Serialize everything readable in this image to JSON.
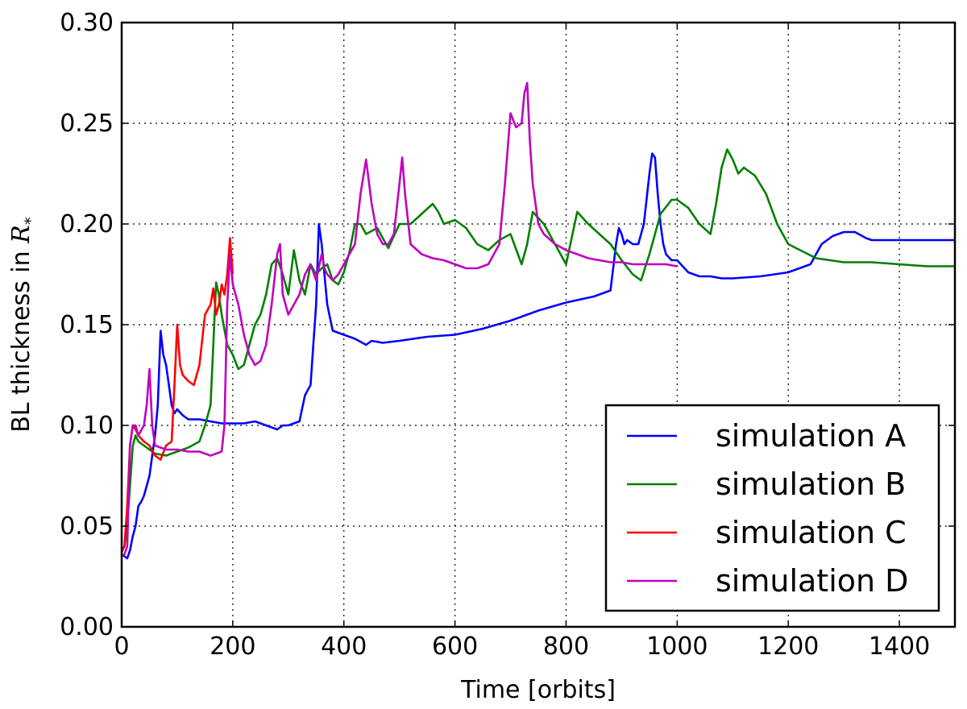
{
  "chart_data": {
    "type": "line",
    "xlabel": "Time [orbits]",
    "ylabel_prefix": "BL thickness in ",
    "ylabel_symbol": "R",
    "ylabel_subscript": "*",
    "xlim": [
      0,
      1500
    ],
    "ylim": [
      0,
      0.3
    ],
    "xticks": [
      0,
      200,
      400,
      600,
      800,
      1000,
      1200,
      1400
    ],
    "yticks": [
      0.0,
      0.05,
      0.1,
      0.15,
      0.2,
      0.25,
      0.3
    ],
    "xtick_labels": [
      "0",
      "200",
      "400",
      "600",
      "800",
      "1000",
      "1200",
      "1400"
    ],
    "ytick_labels": [
      "0.00",
      "0.05",
      "0.10",
      "0.15",
      "0.20",
      "0.25",
      "0.30"
    ],
    "grid": true,
    "legend_position": "bottom-right",
    "series": [
      {
        "name": "simulation A",
        "color": "#0000ff",
        "x": [
          0,
          5,
          10,
          15,
          20,
          25,
          30,
          35,
          40,
          50,
          55,
          60,
          65,
          70,
          75,
          80,
          85,
          90,
          95,
          100,
          110,
          120,
          140,
          160,
          180,
          200,
          220,
          240,
          260,
          280,
          290,
          300,
          320,
          330,
          340,
          345,
          350,
          355,
          360,
          365,
          370,
          380,
          390,
          400,
          420,
          440,
          450,
          470,
          500,
          550,
          600,
          650,
          700,
          750,
          800,
          850,
          880,
          890,
          895,
          900,
          905,
          910,
          920,
          930,
          940,
          950,
          955,
          960,
          965,
          970,
          975,
          980,
          990,
          1000,
          1020,
          1040,
          1060,
          1080,
          1100,
          1150,
          1200,
          1220,
          1240,
          1250,
          1260,
          1280,
          1300,
          1320,
          1340,
          1350,
          1400,
          1450,
          1500
        ],
        "y": [
          0.036,
          0.035,
          0.034,
          0.038,
          0.045,
          0.05,
          0.06,
          0.062,
          0.065,
          0.075,
          0.085,
          0.095,
          0.11,
          0.147,
          0.135,
          0.13,
          0.12,
          0.11,
          0.106,
          0.108,
          0.105,
          0.103,
          0.103,
          0.102,
          0.101,
          0.101,
          0.101,
          0.102,
          0.1,
          0.098,
          0.1,
          0.1,
          0.102,
          0.115,
          0.12,
          0.14,
          0.16,
          0.2,
          0.19,
          0.175,
          0.16,
          0.147,
          0.146,
          0.145,
          0.143,
          0.14,
          0.142,
          0.141,
          0.142,
          0.144,
          0.145,
          0.148,
          0.152,
          0.157,
          0.161,
          0.164,
          0.167,
          0.19,
          0.198,
          0.195,
          0.19,
          0.192,
          0.19,
          0.19,
          0.2,
          0.225,
          0.235,
          0.233,
          0.215,
          0.2,
          0.19,
          0.185,
          0.182,
          0.182,
          0.176,
          0.174,
          0.174,
          0.173,
          0.173,
          0.174,
          0.176,
          0.178,
          0.18,
          0.185,
          0.19,
          0.194,
          0.196,
          0.196,
          0.193,
          0.192,
          0.192,
          0.192,
          0.192
        ]
      },
      {
        "name": "simulation B",
        "color": "#008000",
        "x": [
          0,
          5,
          10,
          15,
          20,
          25,
          30,
          40,
          50,
          60,
          80,
          100,
          120,
          140,
          150,
          160,
          165,
          170,
          175,
          180,
          190,
          200,
          210,
          220,
          230,
          240,
          250,
          260,
          270,
          280,
          290,
          300,
          310,
          320,
          330,
          340,
          350,
          360,
          370,
          380,
          390,
          400,
          410,
          420,
          430,
          440,
          460,
          480,
          500,
          520,
          540,
          560,
          570,
          580,
          600,
          620,
          640,
          660,
          680,
          700,
          720,
          730,
          740,
          760,
          780,
          800,
          820,
          840,
          860,
          880,
          900,
          920,
          935,
          950,
          970,
          990,
          1000,
          1020,
          1040,
          1060,
          1070,
          1080,
          1090,
          1100,
          1110,
          1120,
          1130,
          1140,
          1160,
          1180,
          1200,
          1250,
          1300,
          1350,
          1400,
          1450,
          1500
        ],
        "y": [
          0.037,
          0.04,
          0.05,
          0.07,
          0.09,
          0.095,
          0.092,
          0.09,
          0.088,
          0.086,
          0.085,
          0.087,
          0.089,
          0.092,
          0.1,
          0.11,
          0.14,
          0.171,
          0.165,
          0.155,
          0.14,
          0.135,
          0.128,
          0.13,
          0.14,
          0.15,
          0.155,
          0.165,
          0.18,
          0.183,
          0.175,
          0.165,
          0.187,
          0.172,
          0.165,
          0.18,
          0.175,
          0.178,
          0.18,
          0.172,
          0.17,
          0.176,
          0.186,
          0.2,
          0.2,
          0.195,
          0.198,
          0.188,
          0.2,
          0.2,
          0.205,
          0.21,
          0.206,
          0.2,
          0.202,
          0.198,
          0.19,
          0.187,
          0.192,
          0.195,
          0.18,
          0.19,
          0.206,
          0.2,
          0.19,
          0.18,
          0.206,
          0.2,
          0.195,
          0.19,
          0.182,
          0.175,
          0.172,
          0.185,
          0.205,
          0.212,
          0.212,
          0.208,
          0.2,
          0.195,
          0.21,
          0.228,
          0.237,
          0.232,
          0.225,
          0.228,
          0.226,
          0.224,
          0.215,
          0.2,
          0.19,
          0.183,
          0.181,
          0.181,
          0.18,
          0.179,
          0.179
        ]
      },
      {
        "name": "simulation C",
        "color": "#ff0000",
        "x": [
          0,
          5,
          10,
          15,
          20,
          25,
          30,
          40,
          50,
          60,
          70,
          80,
          90,
          95,
          100,
          105,
          110,
          120,
          130,
          140,
          150,
          160,
          165,
          170,
          175,
          180,
          185,
          190,
          195,
          200
        ],
        "y": [
          0.038,
          0.04,
          0.06,
          0.09,
          0.1,
          0.098,
          0.095,
          0.092,
          0.09,
          0.085,
          0.083,
          0.09,
          0.092,
          0.12,
          0.15,
          0.13,
          0.125,
          0.122,
          0.12,
          0.13,
          0.155,
          0.16,
          0.168,
          0.155,
          0.16,
          0.17,
          0.165,
          0.175,
          0.193,
          0.175
        ]
      },
      {
        "name": "simulation D",
        "color": "#bf00bf",
        "x": [
          0,
          5,
          10,
          15,
          20,
          25,
          30,
          40,
          45,
          50,
          55,
          60,
          80,
          100,
          120,
          140,
          160,
          170,
          180,
          185,
          190,
          195,
          200,
          210,
          220,
          230,
          240,
          250,
          260,
          270,
          280,
          285,
          290,
          300,
          310,
          320,
          330,
          340,
          350,
          360,
          365,
          370,
          380,
          390,
          400,
          420,
          430,
          440,
          450,
          460,
          470,
          480,
          490,
          500,
          505,
          510,
          520,
          540,
          560,
          580,
          600,
          620,
          640,
          660,
          680,
          690,
          700,
          710,
          720,
          725,
          730,
          735,
          740,
          750,
          760,
          780,
          800,
          820,
          840,
          860,
          880,
          900,
          920,
          940,
          960,
          980,
          1000
        ],
        "y": [
          0.035,
          0.036,
          0.04,
          0.09,
          0.1,
          0.1,
          0.095,
          0.1,
          0.11,
          0.128,
          0.1,
          0.09,
          0.088,
          0.088,
          0.087,
          0.087,
          0.085,
          0.086,
          0.087,
          0.1,
          0.16,
          0.185,
          0.17,
          0.16,
          0.145,
          0.135,
          0.13,
          0.132,
          0.14,
          0.16,
          0.185,
          0.19,
          0.165,
          0.155,
          0.16,
          0.165,
          0.175,
          0.18,
          0.172,
          0.185,
          0.178,
          0.175,
          0.172,
          0.175,
          0.18,
          0.19,
          0.215,
          0.232,
          0.21,
          0.195,
          0.19,
          0.19,
          0.195,
          0.22,
          0.233,
          0.215,
          0.19,
          0.185,
          0.183,
          0.182,
          0.18,
          0.178,
          0.178,
          0.18,
          0.19,
          0.22,
          0.255,
          0.248,
          0.25,
          0.265,
          0.27,
          0.24,
          0.22,
          0.2,
          0.195,
          0.19,
          0.187,
          0.185,
          0.183,
          0.182,
          0.181,
          0.181,
          0.18,
          0.18,
          0.18,
          0.18,
          0.179
        ]
      }
    ]
  }
}
